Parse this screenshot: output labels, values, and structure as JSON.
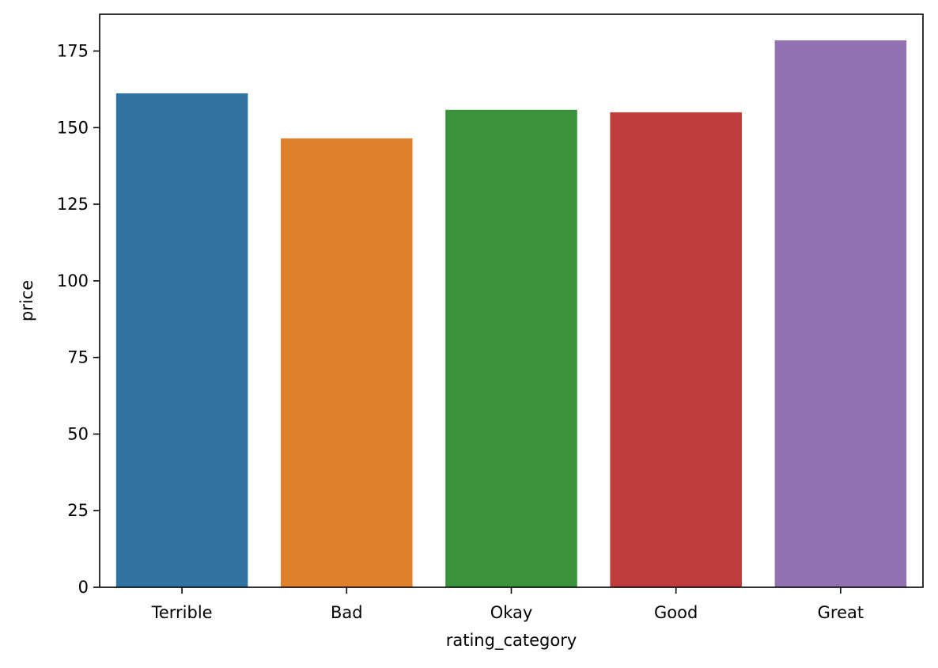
{
  "chart_data": {
    "type": "bar",
    "categories": [
      "Terrible",
      "Bad",
      "Okay",
      "Good",
      "Great"
    ],
    "values": [
      161.2,
      146.5,
      155.8,
      155.0,
      178.5
    ],
    "colors": [
      "#3274a1",
      "#e1812c",
      "#3a923a",
      "#c03d3e",
      "#9372b2"
    ],
    "xlabel": "rating_category",
    "ylabel": "price",
    "ylim": [
      0,
      187
    ],
    "yticks": [
      0,
      25,
      50,
      75,
      100,
      125,
      150,
      175
    ],
    "grid": false,
    "legend": "none"
  }
}
